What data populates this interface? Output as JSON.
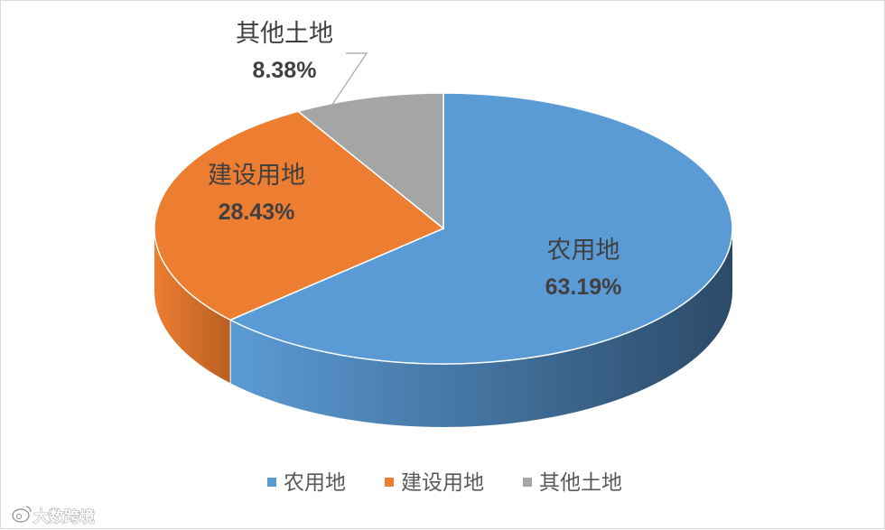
{
  "chart_data": {
    "type": "pie",
    "style": "3d",
    "slices": [
      {
        "name": "农用地",
        "value": 63.19,
        "label": "63.19%",
        "color": "#5B9BD5",
        "side_color": "#2C4A68"
      },
      {
        "name": "建设用地",
        "value": 28.43,
        "label": "28.43%",
        "color": "#ED7D31",
        "side_color": "#B85F22"
      },
      {
        "name": "其他土地",
        "value": 8.38,
        "label": "8.38%",
        "color": "#A5A5A5",
        "side_color": "#6E6E6E"
      }
    ],
    "legend": {
      "position": "bottom",
      "items": [
        "农用地",
        "建设用地",
        "其他土地"
      ]
    }
  },
  "watermark": {
    "icon": "weibo-icon",
    "text": "大数跨境"
  }
}
